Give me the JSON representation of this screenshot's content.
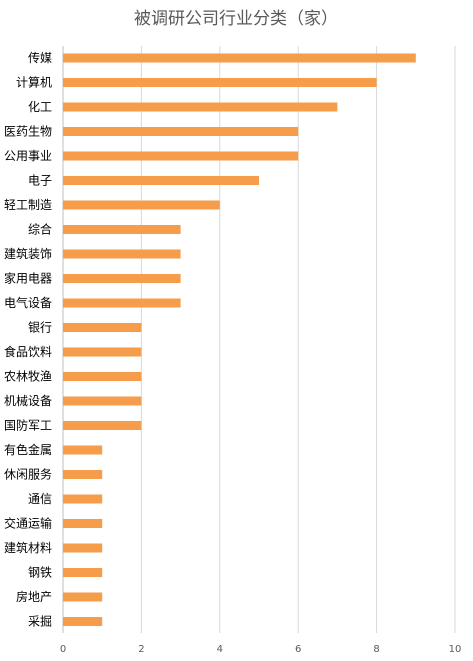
{
  "chart_data": {
    "type": "bar",
    "orientation": "horizontal",
    "title": "被调研公司行业分类（家）",
    "categories": [
      "传媒",
      "计算机",
      "化工",
      "医药生物",
      "公用事业",
      "电子",
      "轻工制造",
      "综合",
      "建筑装饰",
      "家用电器",
      "电气设备",
      "银行",
      "食品饮料",
      "农林牧渔",
      "机械设备",
      "国防军工",
      "有色金属",
      "休闲服务",
      "通信",
      "交通运输",
      "建筑材料",
      "钢铁",
      "房地产",
      "采掘"
    ],
    "values": [
      9,
      8,
      7,
      6,
      6,
      5,
      4,
      3,
      3,
      3,
      3,
      2,
      2,
      2,
      2,
      2,
      1,
      1,
      1,
      1,
      1,
      1,
      1,
      1
    ],
    "x_ticks": [
      "0",
      "2",
      "4",
      "6",
      "8",
      "10"
    ],
    "xlim": [
      0,
      10
    ],
    "xlabel": "",
    "ylabel": "",
    "grid": "vertical",
    "legend": "none",
    "colors": {
      "bar": "#F59D4B",
      "grid": "#D9D9D9",
      "axis": "#BFBFBF"
    }
  }
}
